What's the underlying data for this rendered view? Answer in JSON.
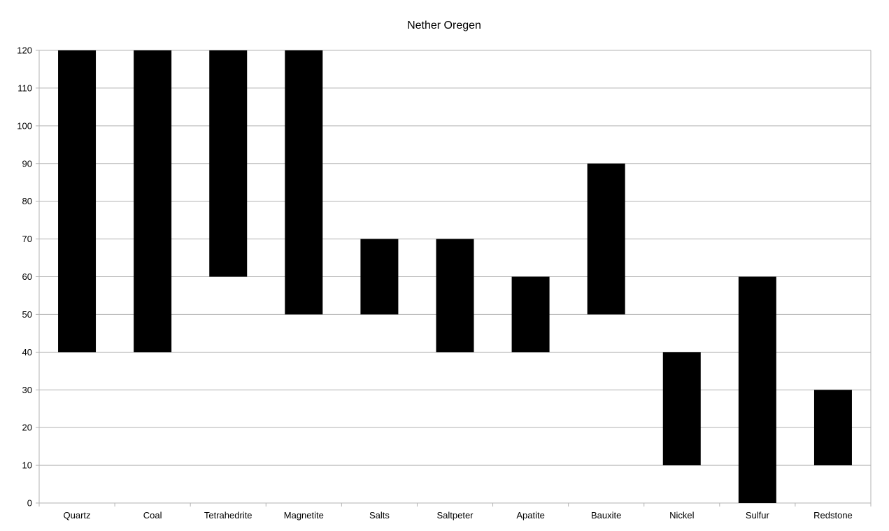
{
  "chart_data": {
    "type": "bar",
    "subtype": "floating-range",
    "title": "Nether Oregen",
    "xlabel": "",
    "ylabel": "",
    "ylim": [
      0,
      120
    ],
    "ytick_step": 10,
    "grid": true,
    "legend": "none",
    "bar_color": "#000000",
    "grid_color": "#b3b3b3",
    "categories": [
      "Quartz",
      "Coal",
      "Tetrahedrite",
      "Magnetite",
      "Salts",
      "Saltpeter",
      "Apatite",
      "Bauxite",
      "Nickel",
      "Sulfur",
      "Redstone"
    ],
    "low": [
      40,
      40,
      60,
      50,
      50,
      40,
      40,
      50,
      10,
      0,
      10
    ],
    "high": [
      120,
      120,
      120,
      120,
      70,
      70,
      60,
      90,
      40,
      60,
      30
    ]
  }
}
